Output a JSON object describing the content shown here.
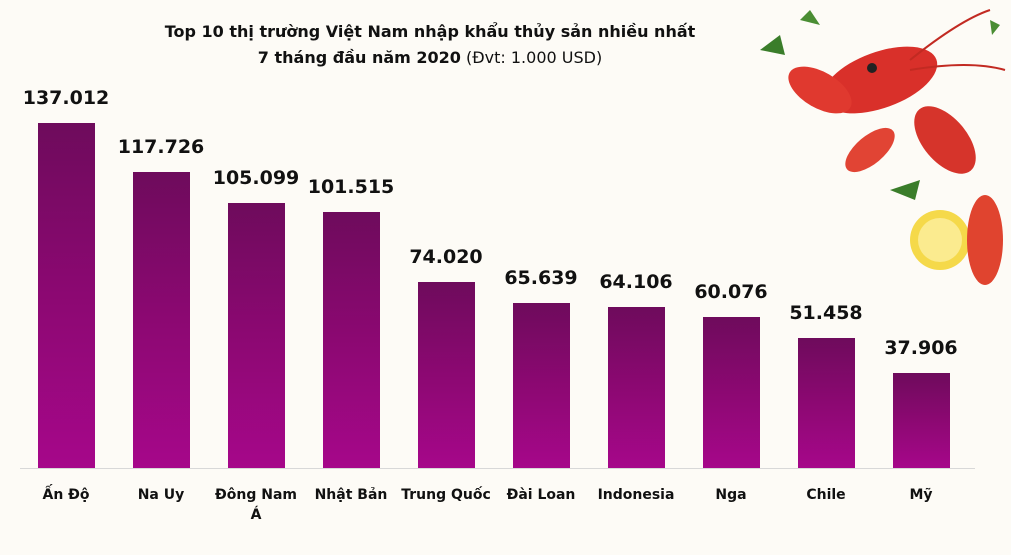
{
  "chart_data": {
    "type": "bar",
    "title": "Top 10 thị trường Việt Nam nhập khẩu thủy sản nhiều nhất",
    "subtitle": "7 tháng đầu năm 2020",
    "unit": "(Đvt: 1.000 USD)",
    "categories": [
      "Ấn Độ",
      "Na Uy",
      "Đông Nam Á",
      "Nhật Bản",
      "Trung Quốc",
      "Đài Loan",
      "Indonesia",
      "Nga",
      "Chile",
      "Mỹ"
    ],
    "values": [
      137012,
      117726,
      105099,
      101515,
      74020,
      65639,
      64106,
      60076,
      51458,
      37906
    ],
    "value_labels": [
      "137.012",
      "117.726",
      "105.099",
      "101.515",
      "74.020",
      "65.639",
      "64.106",
      "60.076",
      "51.458",
      "37.906"
    ],
    "color": "#8c0872"
  }
}
